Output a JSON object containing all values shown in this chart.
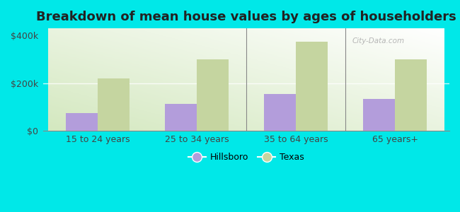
{
  "title": "Breakdown of mean house values by ages of householders",
  "categories": [
    "15 to 24 years",
    "25 to 34 years",
    "35 to 64 years",
    "65 years+"
  ],
  "hillsboro_values": [
    75000,
    115000,
    155000,
    135000
  ],
  "texas_values": [
    220000,
    300000,
    375000,
    300000
  ],
  "hillsboro_color": "#b39ddb",
  "texas_color": "#c5d5a0",
  "background_color": "#00e8e8",
  "ylim": [
    0,
    430000
  ],
  "yticks": [
    0,
    200000,
    400000
  ],
  "ytick_labels": [
    "$0",
    "$200k",
    "$400k"
  ],
  "bar_width": 0.32,
  "title_fontsize": 13,
  "legend_labels": [
    "Hillsboro",
    "Texas"
  ],
  "watermark": "City-Data.com"
}
